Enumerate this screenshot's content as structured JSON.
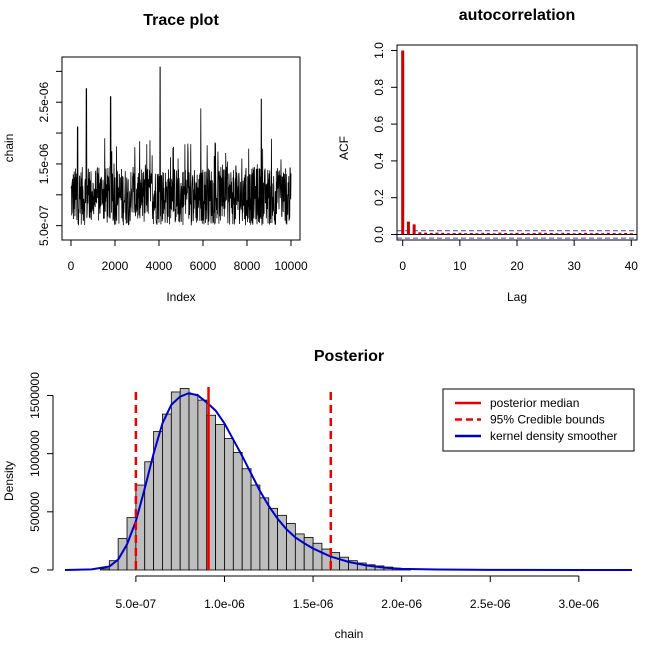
{
  "chart_data": [
    {
      "type": "line",
      "title": "Trace plot",
      "xlabel": "Index",
      "ylabel": "chain",
      "xlim": [
        0,
        10000
      ],
      "ylim": [
        3e-07,
        3.2e-06
      ],
      "x_ticks": [
        0,
        2000,
        4000,
        6000,
        8000,
        10000
      ],
      "x_tick_labels": [
        "0",
        "2000",
        "4000",
        "6000",
        "8000",
        "10000"
      ],
      "y_ticks": [
        5e-07,
        1.5e-06,
        2.5e-06
      ],
      "y_tick_labels": [
        "5.0e-07",
        "1.5e-06",
        "2.5e-06"
      ],
      "y_minor_ticks": [
        1e-06,
        2e-06,
        3e-06
      ],
      "series": [
        {
          "color": "#000000",
          "n": 10000,
          "center": 9.3e-07,
          "typical_low": 5.5e-07,
          "typical_high": 1.5e-06,
          "peaks": [
            [
              700,
              2.72e-06
            ],
            [
              1800,
              2.59e-06
            ],
            [
              4050,
              3.07e-06
            ],
            [
              8650,
              2.55e-06
            ],
            [
              5900,
              2.4e-06
            ],
            [
              300,
              2.1e-06
            ]
          ]
        }
      ]
    },
    {
      "type": "bar",
      "title": "autocorrelation",
      "xlabel": "Lag",
      "ylabel": "ACF",
      "xlim": [
        -1,
        41
      ],
      "ylim": [
        -0.03,
        1.03
      ],
      "x_ticks": [
        0,
        10,
        20,
        30,
        40
      ],
      "y_ticks": [
        0.0,
        0.2,
        0.4,
        0.6,
        0.8,
        1.0
      ],
      "y_tick_labels": [
        "0.0",
        "0.2",
        "0.4",
        "0.6",
        "0.8",
        "1.0"
      ],
      "lags": [
        0,
        1,
        2,
        3,
        4,
        5,
        6,
        7,
        8,
        9,
        10,
        11,
        12,
        13,
        14,
        15,
        16,
        17,
        18,
        19,
        20,
        21,
        22,
        23,
        24,
        25,
        26,
        27,
        28,
        29,
        30,
        31,
        32,
        33,
        34,
        35,
        36,
        37,
        38,
        39,
        40
      ],
      "values": [
        1.0,
        0.07,
        0.055,
        0.012,
        0.01,
        0.008,
        0.01,
        0.009,
        0.007,
        0.008,
        0.009,
        0.007,
        0.008,
        0.007,
        0.009,
        0.008,
        0.007,
        0.01,
        0.008,
        0.007,
        0.009,
        0.008,
        0.007,
        0.008,
        0.01,
        0.009,
        0.008,
        0.007,
        0.009,
        0.008,
        0.007,
        0.008,
        0.009,
        0.007,
        0.008,
        0.007,
        0.009,
        0.008,
        0.007,
        0.008,
        0.007
      ],
      "bar_color": "#cc0000",
      "confidence_band": [
        -0.02,
        0.02
      ],
      "band_color": "#4444cc"
    },
    {
      "type": "bar",
      "title": "Posterior",
      "xlabel": "chain",
      "ylabel": "Density",
      "xlim": [
        1e-07,
        3.3e-06
      ],
      "ylim": [
        0,
        1650000
      ],
      "x_ticks": [
        5e-07,
        1e-06,
        1.5e-06,
        2e-06,
        2.5e-06,
        3e-06
      ],
      "x_tick_labels": [
        "5.0e-07",
        "1.0e-06",
        "1.5e-06",
        "2.0e-06",
        "2.5e-06",
        "3.0e-06"
      ],
      "y_ticks": [
        0,
        500000,
        1000000,
        1500000
      ],
      "y_tick_labels": [
        "0",
        "500000",
        "1000000",
        "1500000"
      ],
      "bin_width": 5e-08,
      "bin_start": 3e-07,
      "histogram": [
        10000,
        80000,
        270000,
        450000,
        730000,
        930000,
        1190000,
        1340000,
        1530000,
        1560000,
        1510000,
        1460000,
        1330000,
        1250000,
        1130000,
        1010000,
        870000,
        730000,
        620000,
        530000,
        470000,
        400000,
        310000,
        280000,
        230000,
        180000,
        150000,
        110000,
        80000,
        60000,
        45000,
        35000,
        25000,
        15000,
        10000
      ],
      "hist_fill": "#bebebe",
      "kde": {
        "x": [
          1e-07,
          2.5e-07,
          3.5e-07,
          4e-07,
          4.5e-07,
          5e-07,
          5.5e-07,
          6e-07,
          6.5e-07,
          7e-07,
          7.5e-07,
          8e-07,
          8.5e-07,
          9e-07,
          9.5e-07,
          1e-06,
          1.05e-06,
          1.1e-06,
          1.15e-06,
          1.2e-06,
          1.25e-06,
          1.3e-06,
          1.35e-06,
          1.4e-06,
          1.45e-06,
          1.5e-06,
          1.55e-06,
          1.6e-06,
          1.7e-06,
          1.8e-06,
          1.9e-06,
          2e-06,
          2.2e-06,
          2.5e-06,
          3e-06,
          3.3e-06
        ],
        "y": [
          0,
          5000,
          30000,
          90000,
          220000,
          420000,
          700000,
          1000000,
          1260000,
          1420000,
          1490000,
          1520000,
          1500000,
          1440000,
          1370000,
          1260000,
          1120000,
          980000,
          830000,
          680000,
          550000,
          440000,
          350000,
          280000,
          230000,
          185000,
          150000,
          115000,
          70000,
          40000,
          20000,
          10000,
          4000,
          1500,
          300,
          0
        ],
        "color": "#0000cc"
      },
      "median": 9.1e-07,
      "credible_bounds": [
        5e-07,
        1.6e-06
      ],
      "legend": {
        "position": "top-right",
        "entries": [
          {
            "label": "posterior median",
            "color": "#ee0000",
            "style": "solid"
          },
          {
            "label": "95% Credible bounds",
            "color": "#ee0000",
            "style": "dashed"
          },
          {
            "label": "kernel density smoother",
            "color": "#0000cc",
            "style": "solid"
          }
        ]
      }
    }
  ]
}
